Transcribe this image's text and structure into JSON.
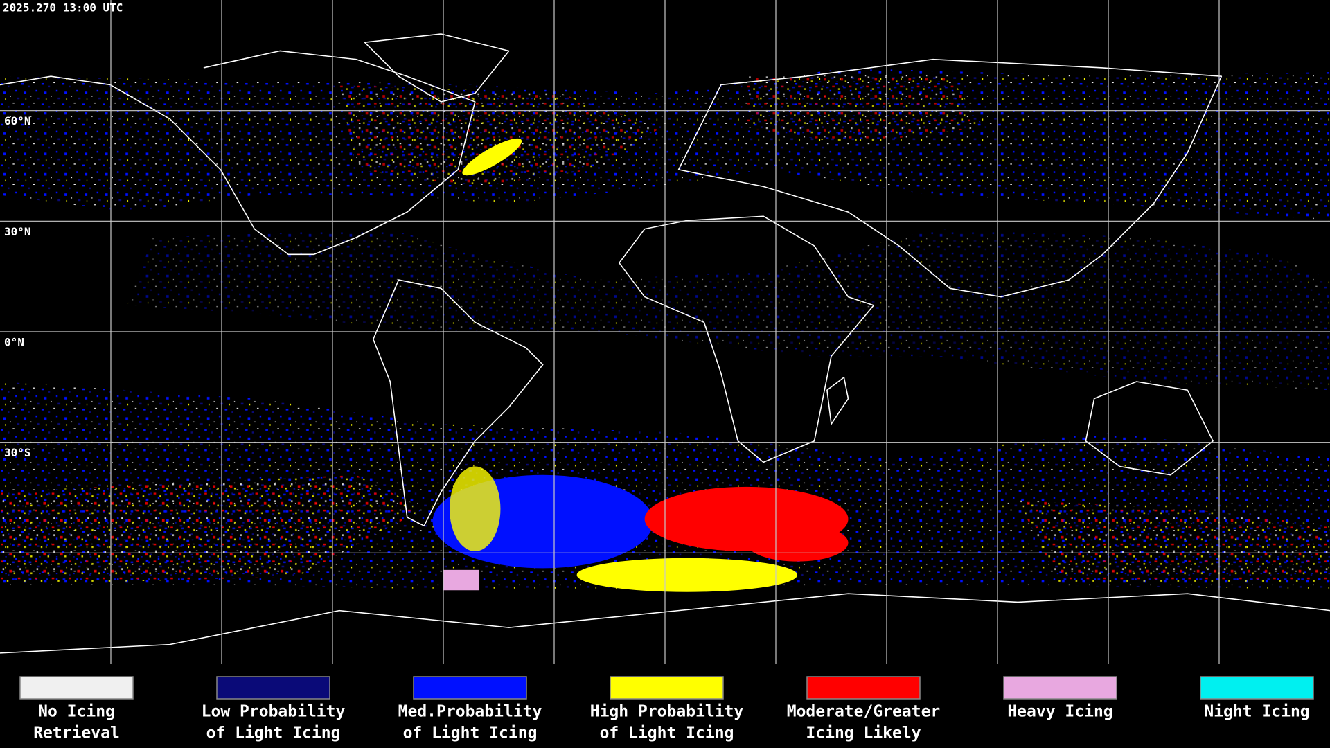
{
  "header": {
    "timestamp": "2025.270 13:00 UTC"
  },
  "map": {
    "latitude_labels": [
      "60°N",
      "30°N",
      "0°N",
      "30°S"
    ]
  },
  "legend": {
    "items": [
      {
        "label_lines": [
          "No Icing",
          "Retrieval"
        ],
        "color": "#f0f0f0"
      },
      {
        "label_lines": [
          "Low Probability",
          "of Light Icing"
        ],
        "color": "#0a0a78"
      },
      {
        "label_lines": [
          "Med.Probability",
          "of Light Icing"
        ],
        "color": "#0010ff"
      },
      {
        "label_lines": [
          "High Probability",
          "of Light Icing"
        ],
        "color": "#ffff00"
      },
      {
        "label_lines": [
          "Moderate/Greater",
          "Icing Likely"
        ],
        "color": "#ff0000"
      },
      {
        "label_lines": [
          "Heavy Icing"
        ],
        "color": "#e8a8e0"
      },
      {
        "label_lines": [
          "Night Icing"
        ],
        "color": "#00f0f0"
      }
    ]
  }
}
